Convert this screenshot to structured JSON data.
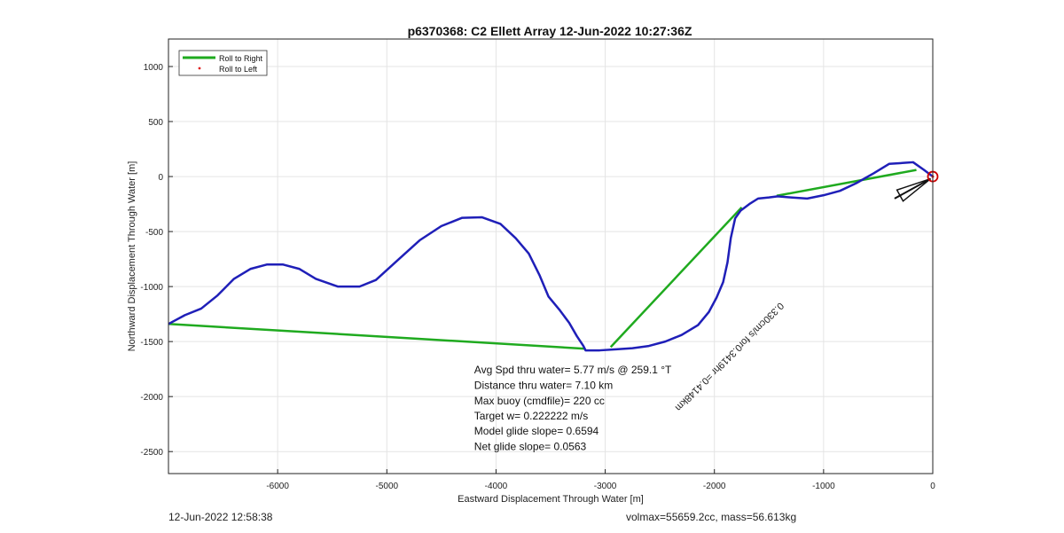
{
  "footer": {
    "timestamp": "12-Jun-2022 12:58:38",
    "vol_mass": "volmax=55659.2cc, mass=56.613kg"
  },
  "chart_data": {
    "type": "line",
    "title": "p6370368: C2 Ellett Array 12-Jun-2022 10:27:36Z",
    "xlabel": "Eastward Displacement Through Water [m]",
    "ylabel": "Northward Displacement Through Water [m]",
    "xlim": [
      -7000,
      0
    ],
    "ylim": [
      -2700,
      1250
    ],
    "xticks": [
      -6000,
      -5000,
      -4000,
      -3000,
      -2000,
      -1000,
      0
    ],
    "yticks": [
      1000,
      500,
      0,
      -500,
      -1000,
      -1500,
      -2000,
      -2500
    ],
    "grid": true,
    "legend": {
      "location": "top-left",
      "entries": [
        "Roll to Right",
        "Roll to Left"
      ]
    },
    "colors": {
      "track": "#1f1fb8",
      "roll_right": "#1faa1f",
      "roll_left": "#e02020",
      "marker": "#cc0000",
      "arrow": "#111111"
    },
    "series": [
      {
        "id": "track",
        "x": [
          0,
          -80,
          -180,
          -250,
          -400,
          -540,
          -700,
          -850,
          -1000,
          -1150,
          -1300,
          -1420,
          -1500,
          -1600,
          -1680,
          -1760,
          -1810,
          -1850,
          -1880,
          -1920,
          -1980,
          -2050,
          -2150,
          -2300,
          -2450,
          -2600,
          -2750,
          -2900,
          -3050,
          -3180,
          -3200,
          -3260,
          -3330,
          -3420,
          -3520,
          -3600,
          -3700,
          -3820,
          -3960,
          -4130,
          -4310,
          -4500,
          -4700,
          -4900,
          -5100,
          -5250,
          -5450,
          -5650,
          -5800,
          -5950,
          -6100,
          -6250,
          -6400,
          -6550,
          -6700,
          -6850,
          -7000
        ],
        "y": [
          0,
          60,
          130,
          125,
          115,
          30,
          -60,
          -130,
          -170,
          -200,
          -190,
          -180,
          -190,
          -200,
          -250,
          -310,
          -380,
          -560,
          -780,
          -960,
          -1100,
          -1230,
          -1350,
          -1440,
          -1500,
          -1540,
          -1560,
          -1570,
          -1580,
          -1580,
          -1540,
          -1450,
          -1330,
          -1210,
          -1090,
          -900,
          -700,
          -560,
          -430,
          -370,
          -375,
          -450,
          -580,
          -760,
          -940,
          -1000,
          -1000,
          -930,
          -840,
          -800,
          -800,
          -840,
          -930,
          -1080,
          -1200,
          -1260,
          -1340
        ]
      },
      {
        "name": "Roll to Right",
        "segments": [
          {
            "x": [
              -7000,
              -3180
            ],
            "y": [
              -1340,
              -1565
            ]
          },
          {
            "x": [
              -2950,
              -1750
            ],
            "y": [
              -1550,
              -280
            ]
          },
          {
            "x": [
              -1430,
              -150
            ],
            "y": [
              -175,
              60
            ]
          }
        ]
      },
      {
        "name": "Roll to Left",
        "x": [
          0
        ],
        "y": [
          0
        ]
      }
    ],
    "current_arrow": {
      "from": [
        -350,
        -200
      ],
      "to": [
        -20,
        -20
      ]
    },
    "annotations": [
      {
        "text": "Avg Spd thru water=  5.77 m/s @ 259.1 °T",
        "x": -4200,
        "y": -1790
      },
      {
        "text": "Distance thru water=  7.10 km",
        "x": -4200,
        "y": -1930
      },
      {
        "text": "Max buoy (cmdfile)= 220 cc",
        "x": -4200,
        "y": -2070
      },
      {
        "text": "Target w= 0.222222 m/s",
        "x": -4200,
        "y": -2210
      },
      {
        "text": "Model glide slope= 0.6594",
        "x": -4200,
        "y": -2345
      },
      {
        "text": "Net glide slope= 0.0563",
        "x": -4200,
        "y": -2485
      }
    ],
    "rotated_label": {
      "text": "0.330cm/s for0.3419hr =0.4148km",
      "x": -1400,
      "y": -1140,
      "angle_deg": -45,
      "flipped": true
    }
  }
}
